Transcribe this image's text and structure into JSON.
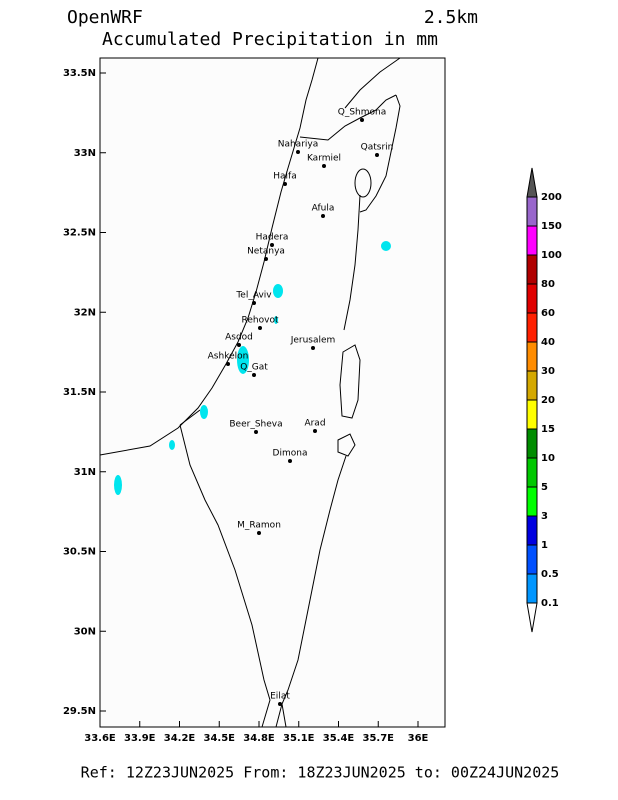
{
  "header": {
    "model": "OpenWRF",
    "resolution": "2.5km",
    "title": "Accumulated Precipitation in mm"
  },
  "map": {
    "lat_ticks": [
      "33.5N",
      "33N",
      "32.5N",
      "32N",
      "31.5N",
      "31N",
      "30.5N",
      "30N",
      "29.5N"
    ],
    "lon_ticks": [
      "33.6E",
      "33.9E",
      "34.2E",
      "34.5E",
      "34.8E",
      "35.1E",
      "35.4E",
      "35.7E",
      "36E"
    ],
    "cities": [
      "Q_Shmona",
      "Nahariya",
      "Karmiel",
      "Qatsrin",
      "Haifa",
      "Afula",
      "Hadera",
      "Netanya",
      "Tel_Aviv",
      "Rehovot",
      "Asdod",
      "Ashkelon",
      "Q_Gat",
      "Jerusalem",
      "Beer_Sheva",
      "Arad",
      "Dimona",
      "M_Ramon",
      "Eilat"
    ]
  },
  "colorbar": {
    "labels": [
      "200",
      "150",
      "100",
      "80",
      "60",
      "40",
      "30",
      "20",
      "15",
      "10",
      "5",
      "3",
      "1",
      "0.5",
      "0.1"
    ]
  },
  "footer": "Ref: 12Z23JUN2025  From: 18Z23JUN2025 to: 00Z24JUN2025"
}
